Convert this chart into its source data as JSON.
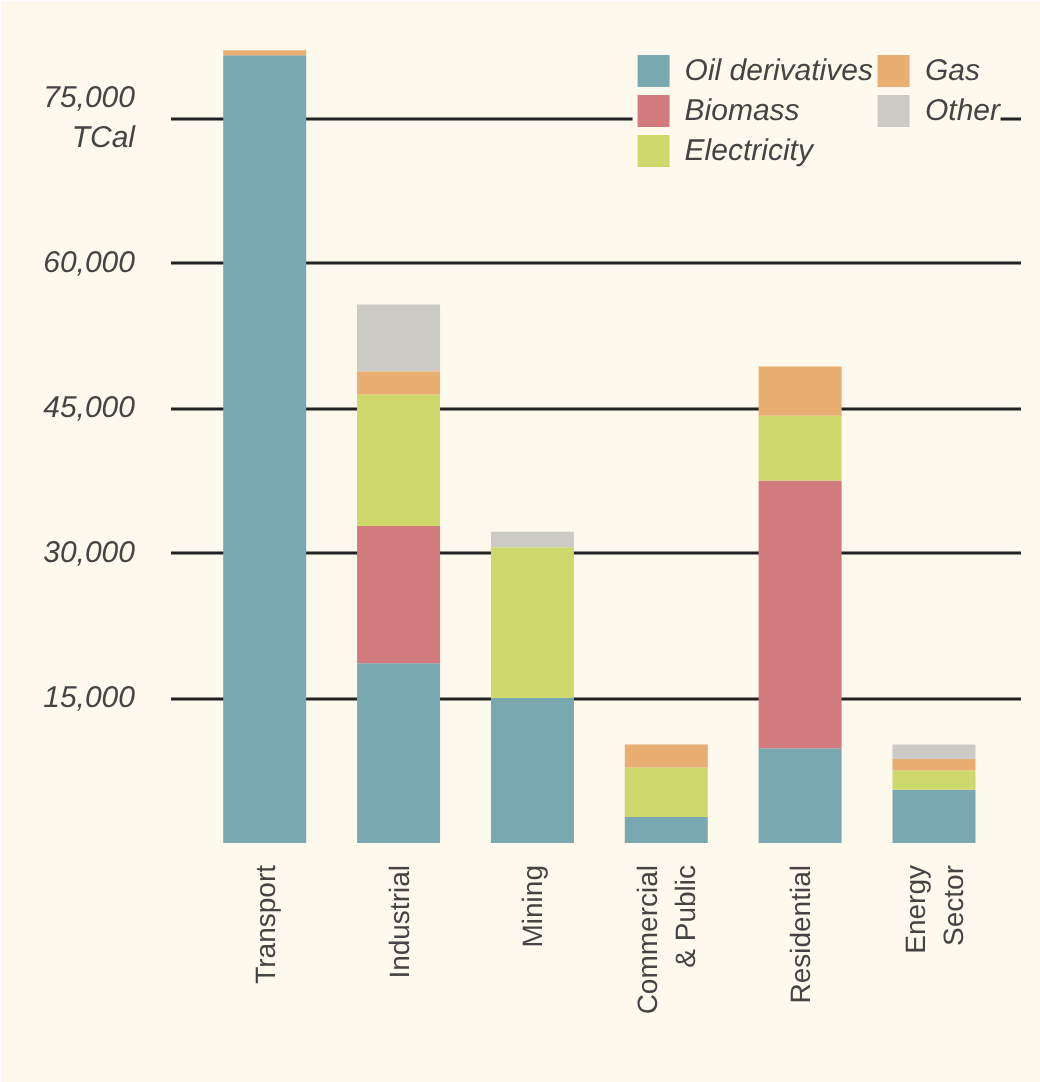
{
  "chart_data": {
    "type": "bar",
    "stacked": true,
    "ylabel": "TCal",
    "categories": [
      "Transport",
      "Industrial",
      "Mining",
      "Commercial\n& Public",
      "Residential",
      "Energy\nSector"
    ],
    "series": [
      {
        "name": "Oil derivatives",
        "color": "#79a8b0",
        "values": [
          81500,
          18600,
          15000,
          2700,
          9800,
          5500
        ]
      },
      {
        "name": "Biomass",
        "color": "#d27b7e",
        "values": [
          0,
          14200,
          0,
          0,
          27700,
          0
        ]
      },
      {
        "name": "Electricity",
        "color": "#cdd96a",
        "values": [
          0,
          13600,
          15600,
          5100,
          6700,
          2000
        ]
      },
      {
        "name": "Gas",
        "color": "#e9ae72",
        "values": [
          500,
          2400,
          0,
          2400,
          5100,
          1200
        ]
      },
      {
        "name": "Other",
        "color": "#cccac4",
        "values": [
          0,
          6900,
          1600,
          0,
          0,
          1500
        ]
      }
    ],
    "ylim": [
      0,
      84000
    ],
    "yticks": [
      {
        "value": 15000,
        "label": "15,000"
      },
      {
        "value": 30000,
        "label": "30,000"
      },
      {
        "value": 45000,
        "label": "45,000"
      },
      {
        "value": 60000,
        "label": "60,000"
      },
      {
        "value": 75000,
        "label": "75,000"
      }
    ],
    "grid": "y",
    "legend": "top right"
  }
}
